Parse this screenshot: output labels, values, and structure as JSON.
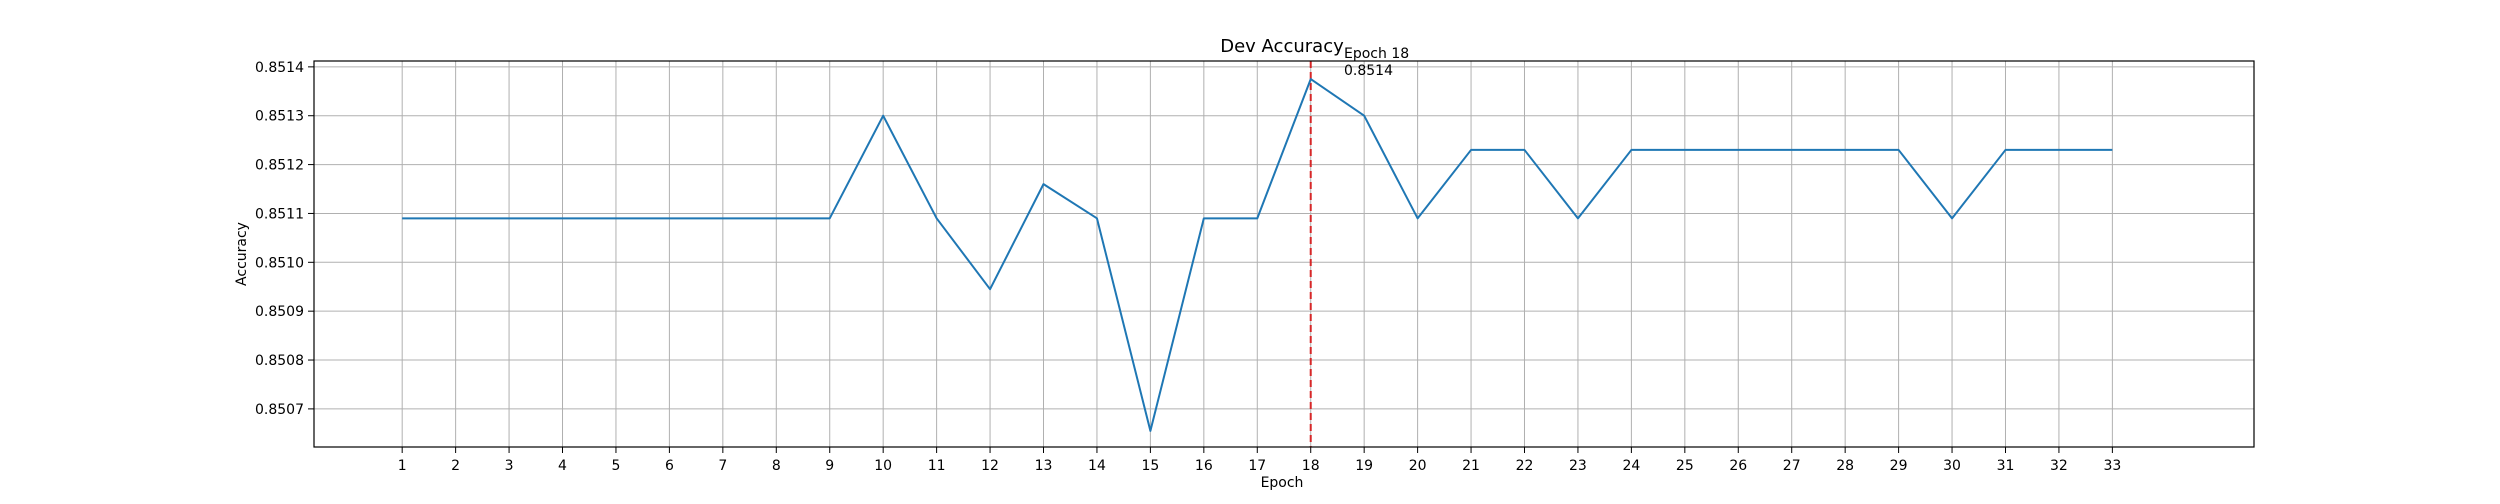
{
  "chart_data": {
    "type": "line",
    "title": "Dev Accuracy",
    "xlabel": "Epoch",
    "ylabel": "Accuracy",
    "x": [
      1,
      2,
      3,
      4,
      5,
      6,
      7,
      8,
      9,
      10,
      11,
      12,
      13,
      14,
      15,
      16,
      17,
      18,
      19,
      20,
      21,
      22,
      23,
      24,
      25,
      26,
      27,
      28,
      29,
      30,
      31,
      32,
      33
    ],
    "series": [
      {
        "values": [
          0.85109,
          0.85109,
          0.85109,
          0.85109,
          0.85109,
          0.85109,
          0.85109,
          0.85109,
          0.85109,
          0.8513,
          0.85109,
          0.850945,
          0.85116,
          0.85109,
          0.850655,
          0.85109,
          0.85109,
          0.851375,
          0.8513,
          0.85109,
          0.85123,
          0.85123,
          0.85109,
          0.85123,
          0.85123,
          0.85123,
          0.85123,
          0.85123,
          0.85123,
          0.85109,
          0.85123,
          0.85123,
          0.85123
        ],
        "color": "#1f77b4"
      }
    ],
    "xlim": [
      -0.65,
      35.65
    ],
    "ylim": [
      0.850622,
      0.851412
    ],
    "yticks": [
      "0.8507",
      "0.8508",
      "0.8509",
      "0.8510",
      "0.8511",
      "0.8512",
      "0.8513",
      "0.8514"
    ],
    "xticks": [
      "1",
      "2",
      "3",
      "4",
      "5",
      "6",
      "7",
      "8",
      "9",
      "10",
      "11",
      "12",
      "13",
      "14",
      "15",
      "16",
      "17",
      "18",
      "19",
      "20",
      "21",
      "22",
      "23",
      "24",
      "25",
      "26",
      "27",
      "28",
      "29",
      "30",
      "31",
      "32",
      "33"
    ],
    "grid": true,
    "annotation": {
      "x": 18,
      "y": 0.851375,
      "line_color": "#d62728",
      "line_style": "dashed",
      "label_line1": "Epoch 18",
      "label_line2": "0.8514"
    }
  }
}
